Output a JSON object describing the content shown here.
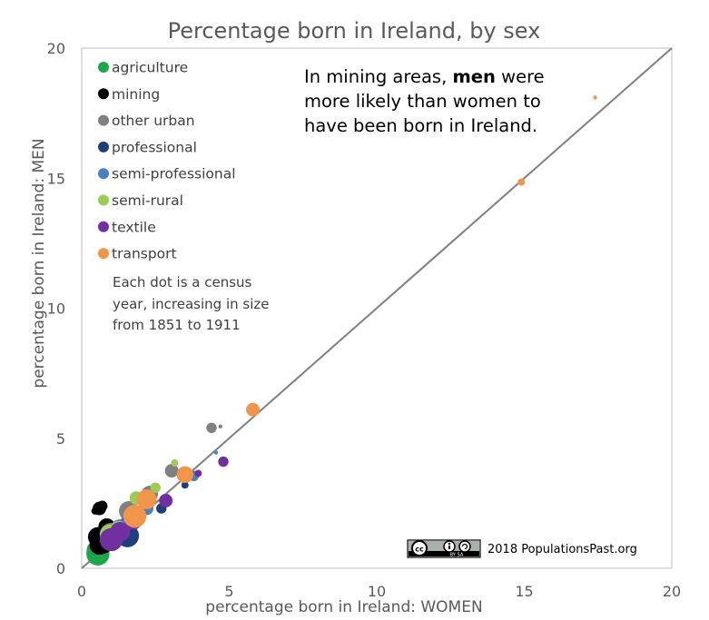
{
  "chart_data": {
    "type": "scatter",
    "title": "Percentage born in Ireland, by sex",
    "xlabel": "percentage born in Ireland: WOMEN",
    "ylabel": "percentage born in Ireland: MEN",
    "xlim": [
      0,
      20
    ],
    "ylim": [
      0,
      20
    ],
    "xticks": [
      "0",
      "5",
      "10",
      "15",
      "20"
    ],
    "yticks": [
      "0",
      "5",
      "10",
      "15",
      "20"
    ],
    "reference_line": "y = x",
    "legend_position": "top-left",
    "series": [
      {
        "name": "agriculture",
        "color": "#1aa84a",
        "points": [
          [
            0.4,
            0.7,
            2
          ],
          [
            0.45,
            0.75,
            3
          ],
          [
            0.5,
            0.8,
            4
          ],
          [
            0.45,
            0.7,
            5
          ],
          [
            0.5,
            0.6,
            6
          ],
          [
            0.55,
            0.55,
            7
          ]
        ]
      },
      {
        "name": "mining",
        "color": "#000000",
        "points": [
          [
            0.45,
            2.2,
            2
          ],
          [
            0.7,
            2.4,
            3
          ],
          [
            0.6,
            2.3,
            4
          ],
          [
            0.85,
            1.6,
            5
          ],
          [
            0.55,
            1.2,
            6
          ],
          [
            0.6,
            0.9,
            6
          ],
          [
            0.7,
            1.0,
            7
          ]
        ]
      },
      {
        "name": "other urban",
        "color": "#808080",
        "points": [
          [
            4.7,
            5.45,
            1
          ],
          [
            4.4,
            5.4,
            3
          ],
          [
            3.05,
            3.75,
            4
          ],
          [
            2.3,
            2.85,
            5
          ],
          [
            1.6,
            2.2,
            6
          ],
          [
            1.0,
            1.3,
            7
          ]
        ]
      },
      {
        "name": "professional",
        "color": "#1f3f7a",
        "points": [
          [
            3.5,
            3.2,
            2
          ],
          [
            2.7,
            2.3,
            3
          ],
          [
            1.9,
            1.9,
            4
          ],
          [
            1.45,
            1.6,
            5
          ],
          [
            1.5,
            1.35,
            6
          ],
          [
            1.55,
            1.25,
            7
          ]
        ]
      },
      {
        "name": "semi-professional",
        "color": "#4a80c0",
        "points": [
          [
            4.55,
            4.45,
            1
          ],
          [
            3.8,
            3.55,
            3
          ],
          [
            2.2,
            2.3,
            4
          ],
          [
            1.8,
            1.9,
            5
          ],
          [
            1.3,
            1.5,
            6
          ]
        ]
      },
      {
        "name": "semi-rural",
        "color": "#9acd55",
        "points": [
          [
            3.15,
            4.05,
            2
          ],
          [
            2.5,
            3.1,
            3
          ],
          [
            1.85,
            2.7,
            4
          ],
          [
            1.25,
            1.5,
            5
          ],
          [
            0.95,
            1.3,
            6
          ]
        ]
      },
      {
        "name": "textile",
        "color": "#7030a0",
        "points": [
          [
            3.95,
            3.65,
            2
          ],
          [
            4.8,
            4.1,
            3
          ],
          [
            2.85,
            2.6,
            4
          ],
          [
            1.75,
            1.8,
            5
          ],
          [
            1.3,
            1.4,
            6
          ],
          [
            1.0,
            1.1,
            7
          ]
        ]
      },
      {
        "name": "transport",
        "color": "#f0954a",
        "points": [
          [
            17.4,
            18.1,
            1
          ],
          [
            14.9,
            14.85,
            2
          ],
          [
            5.8,
            6.1,
            4
          ],
          [
            3.5,
            3.6,
            5
          ],
          [
            2.2,
            2.65,
            6
          ],
          [
            1.8,
            2.0,
            7
          ]
        ]
      }
    ],
    "note_lines": [
      "Each dot is a census",
      "year, increasing in size",
      "from  1851 to 1911"
    ],
    "annotation": {
      "line1_pre": "In mining areas, ",
      "line1_bold": "men",
      "line1_post": " were",
      "line2": "more likely than women to",
      "line3": "have been born in Ireland."
    },
    "credit": {
      "license_badge": "cc-by-sa",
      "license_sub": "BY  SA",
      "text": "2018 PopulationsPast.org"
    }
  }
}
